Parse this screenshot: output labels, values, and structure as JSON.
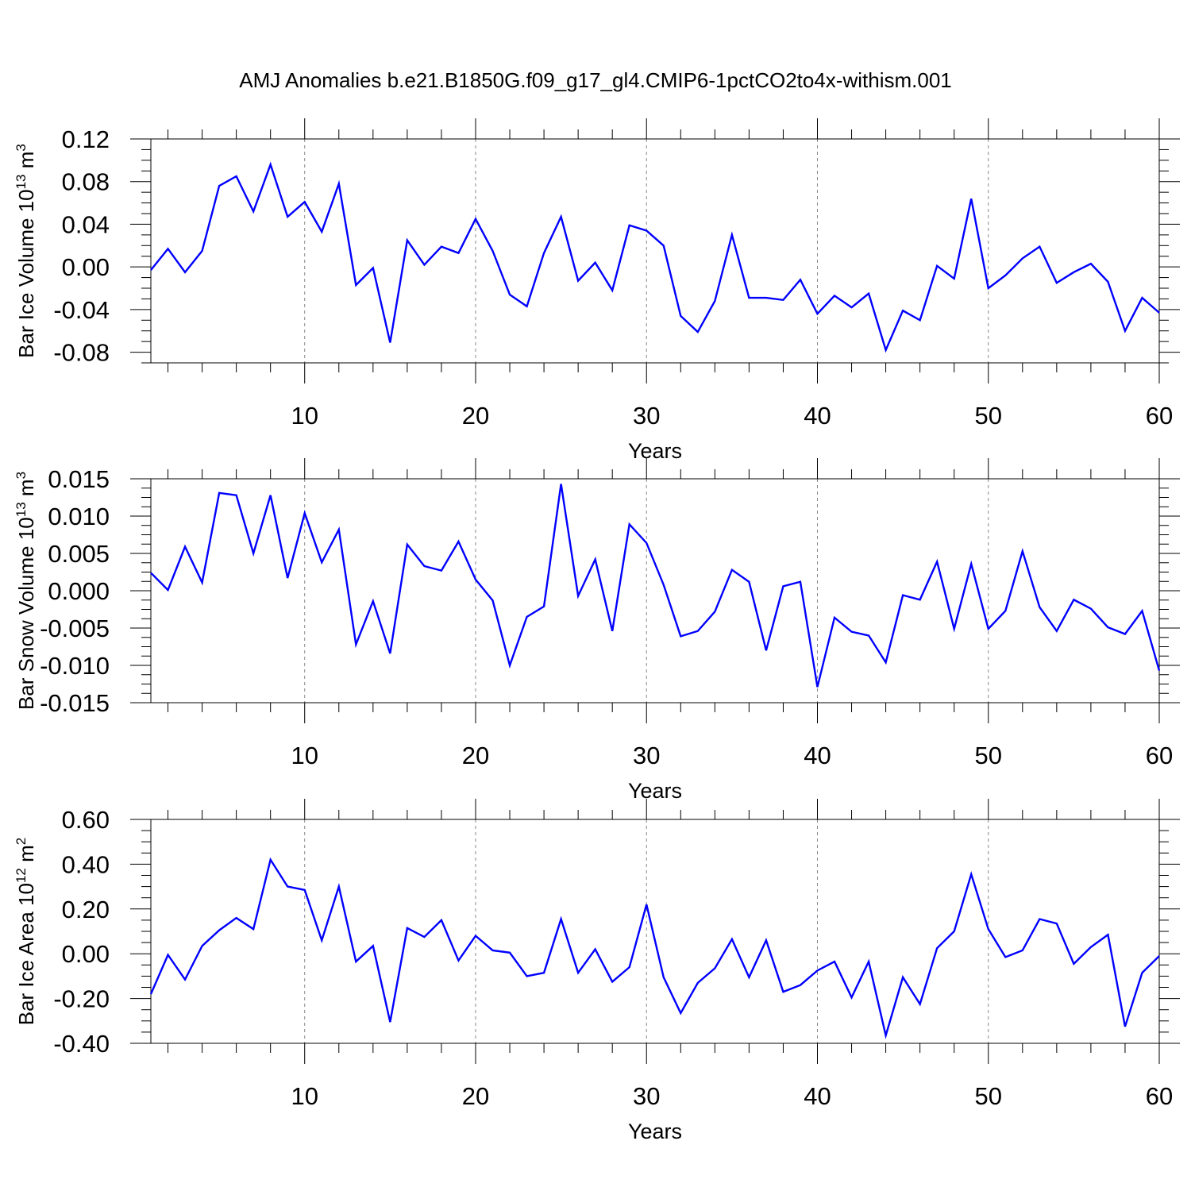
{
  "title": "AMJ Anomalies b.e21.B1850G.f09_g17_gl4.CMIP6-1pctCO2to4x-withism.001",
  "line_color": "#0000ff",
  "chart_data": [
    {
      "type": "line",
      "xlabel": "Years",
      "ylabel": "Bar Ice Volume 10",
      "ylabel_exp": "13",
      "ylabel_unit": "m",
      "ylabel_unit_exp": "3",
      "xlim": [
        1,
        60
      ],
      "ylim": [
        -0.09,
        0.12
      ],
      "x_ticks": [
        "10",
        "20",
        "30",
        "40",
        "50",
        "60"
      ],
      "y_ticks": [
        "0.12",
        "0.08",
        "0.04",
        "0.00",
        "-0.04",
        "-0.08"
      ],
      "grid": "dashed vertical at decades",
      "series": [
        {
          "x": [
            1,
            2,
            3,
            4,
            5,
            6,
            7,
            8,
            9,
            10,
            11,
            12,
            13,
            14,
            15,
            16,
            17,
            18,
            19,
            20,
            21,
            22,
            23,
            24,
            25,
            26,
            27,
            28,
            29,
            30,
            31,
            32,
            33,
            34,
            35,
            36,
            37,
            38,
            39,
            40,
            41,
            42,
            43,
            44,
            45,
            46,
            47,
            48,
            49,
            50,
            51,
            52,
            53,
            54,
            55,
            56,
            57,
            58,
            59,
            60
          ],
          "values": [
            -0.003,
            0.017,
            -0.005,
            0.015,
            0.076,
            0.085,
            0.052,
            0.096,
            0.047,
            0.061,
            0.033,
            0.078,
            -0.017,
            -0.001,
            -0.071,
            0.025,
            0.002,
            0.019,
            0.013,
            0.045,
            0.015,
            -0.026,
            -0.037,
            0.013,
            0.047,
            -0.013,
            0.004,
            -0.022,
            0.039,
            0.034,
            0.02,
            -0.046,
            -0.061,
            -0.032,
            0.03,
            -0.029,
            -0.029,
            -0.031,
            -0.012,
            -0.044,
            -0.027,
            -0.038,
            -0.025,
            -0.078,
            -0.041,
            -0.05,
            0.001,
            -0.011,
            0.064,
            -0.02,
            -0.008,
            0.008,
            0.019,
            -0.015,
            -0.005,
            0.003,
            -0.014,
            -0.06,
            -0.029,
            -0.043
          ]
        }
      ]
    },
    {
      "type": "line",
      "xlabel": "Years",
      "ylabel": "Bar Snow Volume 10",
      "ylabel_exp": "13",
      "ylabel_unit": "m",
      "ylabel_unit_exp": "3",
      "xlim": [
        1,
        60
      ],
      "ylim": [
        -0.015,
        0.015
      ],
      "x_ticks": [
        "10",
        "20",
        "30",
        "40",
        "50",
        "60"
      ],
      "y_ticks": [
        "0.015",
        "0.010",
        "0.005",
        "0.000",
        "-0.005",
        "-0.010",
        "-0.015"
      ],
      "grid": "dashed vertical at decades",
      "series": [
        {
          "x": [
            1,
            2,
            3,
            4,
            5,
            6,
            7,
            8,
            9,
            10,
            11,
            12,
            13,
            14,
            15,
            16,
            17,
            18,
            19,
            20,
            21,
            22,
            23,
            24,
            25,
            26,
            27,
            28,
            29,
            30,
            31,
            32,
            33,
            34,
            35,
            36,
            37,
            38,
            39,
            40,
            41,
            42,
            43,
            44,
            45,
            46,
            47,
            48,
            49,
            50,
            51,
            52,
            53,
            54,
            55,
            56,
            57,
            58,
            59,
            60
          ],
          "values": [
            0.0024,
            0.0001,
            0.0059,
            0.0011,
            0.0131,
            0.0128,
            0.005,
            0.0128,
            0.0017,
            0.0104,
            0.0038,
            0.0082,
            -0.0072,
            -0.0014,
            -0.0084,
            0.0062,
            0.0033,
            0.0027,
            0.0066,
            0.0015,
            -0.0013,
            -0.01,
            -0.0035,
            -0.0021,
            0.0143,
            -0.0007,
            0.0042,
            -0.0054,
            0.0089,
            0.0064,
            0.0008,
            -0.0061,
            -0.0054,
            -0.0028,
            0.0028,
            0.0012,
            -0.008,
            0.0006,
            0.0012,
            -0.0129,
            -0.0036,
            -0.0055,
            -0.006,
            -0.0096,
            -0.0006,
            -0.0012,
            0.0039,
            -0.0051,
            0.0036,
            -0.0051,
            -0.0027,
            0.0053,
            -0.0022,
            -0.0054,
            -0.0012,
            -0.0024,
            -0.0049,
            -0.0058,
            -0.0027,
            -0.0107
          ]
        }
      ]
    },
    {
      "type": "line",
      "xlabel": "Years",
      "ylabel": "Bar Ice Area 10",
      "ylabel_exp": "12",
      "ylabel_unit": "m",
      "ylabel_unit_exp": "2",
      "xlim": [
        1,
        60
      ],
      "ylim": [
        -0.4,
        0.6
      ],
      "x_ticks": [
        "10",
        "20",
        "30",
        "40",
        "50",
        "60"
      ],
      "y_ticks": [
        "0.60",
        "0.40",
        "0.20",
        "0.00",
        "-0.20",
        "-0.40"
      ],
      "grid": "dashed vertical at decades",
      "series": [
        {
          "x": [
            1,
            2,
            3,
            4,
            5,
            6,
            7,
            8,
            9,
            10,
            11,
            12,
            13,
            14,
            15,
            16,
            17,
            18,
            19,
            20,
            21,
            22,
            23,
            24,
            25,
            26,
            27,
            28,
            29,
            30,
            31,
            32,
            33,
            34,
            35,
            36,
            37,
            38,
            39,
            40,
            41,
            42,
            43,
            44,
            45,
            46,
            47,
            48,
            49,
            50,
            51,
            52,
            53,
            54,
            55,
            56,
            57,
            58,
            59,
            60
          ],
          "values": [
            -0.18,
            -0.005,
            -0.115,
            0.035,
            0.105,
            0.16,
            0.11,
            0.42,
            0.3,
            0.285,
            0.06,
            0.3,
            -0.035,
            0.035,
            -0.305,
            0.115,
            0.075,
            0.15,
            -0.03,
            0.08,
            0.015,
            0.005,
            -0.1,
            -0.085,
            0.155,
            -0.085,
            0.02,
            -0.125,
            -0.06,
            0.22,
            -0.105,
            -0.265,
            -0.13,
            -0.065,
            0.065,
            -0.105,
            0.06,
            -0.17,
            -0.14,
            -0.075,
            -0.035,
            -0.195,
            -0.035,
            -0.365,
            -0.105,
            -0.225,
            0.025,
            0.1,
            0.355,
            0.11,
            -0.015,
            0.015,
            0.155,
            0.135,
            -0.045,
            0.03,
            0.085,
            -0.325,
            -0.085,
            -0.01
          ]
        }
      ]
    }
  ]
}
